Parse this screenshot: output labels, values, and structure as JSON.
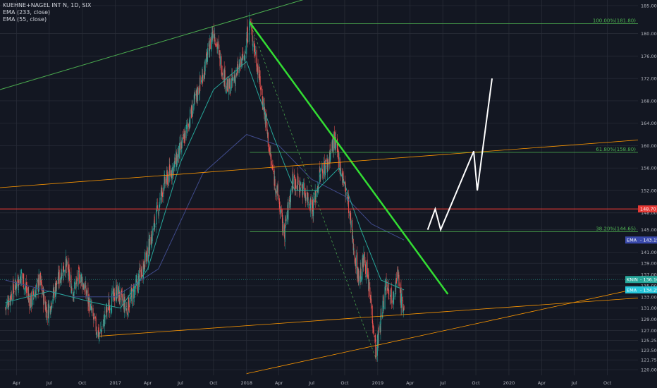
{
  "legend": {
    "symbol": "KUEHNE+NAGEL INT N, 1D, SIX",
    "ema1": "EMA (233, close)",
    "ema2": "EMA (55, close)"
  },
  "chart_data": {
    "type": "candlestick",
    "symbol": "KUEHNE+NAGEL INT N",
    "interval": "1D",
    "exchange": "SIX",
    "ylim": [
      119,
      186
    ],
    "y_ticks": [
      120.0,
      121.75,
      123.5,
      125.25,
      127.0,
      129.0,
      131.0,
      133.0,
      135.0,
      137.0,
      139.0,
      141.0,
      145.0,
      148.0,
      152.0,
      156.0,
      160.0,
      164.0,
      168.0,
      172.0,
      176.0,
      180.0,
      185.0
    ],
    "x_ticks": [
      "Apr",
      "Jul",
      "Oct",
      "2017",
      "Apr",
      "Jul",
      "Oct",
      "2018",
      "Apr",
      "Jul",
      "Oct",
      "2019",
      "Apr",
      "Jul",
      "Oct",
      "2020",
      "Apr",
      "Jul",
      "Oct"
    ],
    "price_path": [
      [
        "2016-03-01",
        131
      ],
      [
        "2016-03-20",
        134
      ],
      [
        "2016-04-15",
        137
      ],
      [
        "2016-05-10",
        132
      ],
      [
        "2016-06-05",
        136
      ],
      [
        "2016-06-25",
        130
      ],
      [
        "2016-07-20",
        135
      ],
      [
        "2016-08-15",
        139
      ],
      [
        "2016-09-05",
        134
      ],
      [
        "2016-09-25",
        137
      ],
      [
        "2016-10-15",
        133
      ],
      [
        "2016-11-05",
        128
      ],
      [
        "2016-11-18",
        126
      ],
      [
        "2016-12-10",
        131
      ],
      [
        "2017-01-05",
        134
      ],
      [
        "2017-02-01",
        131
      ],
      [
        "2017-03-01",
        135
      ],
      [
        "2017-04-01",
        141
      ],
      [
        "2017-04-20",
        146
      ],
      [
        "2017-05-15",
        153
      ],
      [
        "2017-06-10",
        156
      ],
      [
        "2017-07-05",
        160
      ],
      [
        "2017-08-01",
        166
      ],
      [
        "2017-08-25",
        171
      ],
      [
        "2017-09-15",
        176
      ],
      [
        "2017-10-01",
        181
      ],
      [
        "2017-10-20",
        175
      ],
      [
        "2017-11-10",
        170
      ],
      [
        "2017-12-05",
        173
      ],
      [
        "2017-12-25",
        176
      ],
      [
        "2018-01-10",
        182
      ],
      [
        "2018-02-01",
        174
      ],
      [
        "2018-02-20",
        166
      ],
      [
        "2018-03-10",
        157
      ],
      [
        "2018-04-01",
        150
      ],
      [
        "2018-04-15",
        144
      ],
      [
        "2018-05-10",
        154
      ],
      [
        "2018-06-10",
        152
      ],
      [
        "2018-07-05",
        149
      ],
      [
        "2018-07-25",
        155
      ],
      [
        "2018-08-15",
        157
      ],
      [
        "2018-09-01",
        161
      ],
      [
        "2018-09-20",
        156
      ],
      [
        "2018-10-10",
        150
      ],
      [
        "2018-10-25",
        142
      ],
      [
        "2018-11-10",
        136
      ],
      [
        "2018-11-25",
        140
      ],
      [
        "2018-12-15",
        131
      ],
      [
        "2018-12-27",
        123
      ],
      [
        "2019-01-10",
        129
      ],
      [
        "2019-01-25",
        136
      ],
      [
        "2019-02-10",
        133
      ],
      [
        "2019-02-25",
        137
      ],
      [
        "2019-03-08",
        132
      ],
      [
        "2019-03-15",
        131
      ]
    ],
    "ema_233": [
      [
        "2016-03-01",
        136
      ],
      [
        "2016-09-01",
        133
      ],
      [
        "2017-01-01",
        133
      ],
      [
        "2017-05-01",
        138
      ],
      [
        "2017-09-01",
        155
      ],
      [
        "2018-01-01",
        162
      ],
      [
        "2018-04-01",
        160
      ],
      [
        "2018-07-01",
        154
      ],
      [
        "2018-10-01",
        151
      ],
      [
        "2018-12-15",
        146
      ],
      [
        "2019-03-15",
        143.15
      ]
    ],
    "ema_55": [
      [
        "2016-03-01",
        132
      ],
      [
        "2016-07-01",
        134
      ],
      [
        "2016-11-01",
        132
      ],
      [
        "2017-01-15",
        131
      ],
      [
        "2017-04-01",
        138
      ],
      [
        "2017-07-01",
        157
      ],
      [
        "2017-10-01",
        170
      ],
      [
        "2018-01-01",
        175
      ],
      [
        "2018-03-15",
        162
      ],
      [
        "2018-05-15",
        152
      ],
      [
        "2018-07-15",
        152
      ],
      [
        "2018-09-15",
        156
      ],
      [
        "2018-11-15",
        145
      ],
      [
        "2019-01-10",
        136
      ],
      [
        "2019-03-15",
        134.25
      ]
    ],
    "current_price": 136.1,
    "levels": {
      "red_horizontal": 148.7,
      "fib_100": 181.8,
      "fib_61_8": 158.8,
      "fib_38_2": 144.65
    },
    "price_tags": [
      {
        "label": "148.70",
        "value": 148.7,
        "color": "#e53935"
      },
      {
        "label": "EMA",
        "text": "143.15",
        "value": 143.15,
        "color": "#3949ab"
      },
      {
        "label": "KNIN",
        "text": "136.10",
        "value": 136.1,
        "color": "#26a69a"
      },
      {
        "label": "EMA",
        "text": "134.25",
        "value": 134.25,
        "color": "#26c6da"
      }
    ],
    "fib_labels": [
      {
        "text": "100.00%(181.80)",
        "value": 181.8
      },
      {
        "text": "61.80%(158.80)",
        "value": 158.8
      },
      {
        "text": "38.20%(144.65)",
        "value": 144.65
      }
    ],
    "projection_path": [
      [
        "2019-05-20",
        145
      ],
      [
        "2019-06-10",
        148.7
      ],
      [
        "2019-06-25",
        145
      ],
      [
        "2019-09-25",
        159
      ],
      [
        "2019-10-05",
        152
      ],
      [
        "2019-11-15",
        172
      ]
    ],
    "colors": {
      "background": "#131722",
      "grid": "#2a2e39",
      "up": "#26a69a",
      "down": "#ef5350",
      "ema_233": "#3f4a8a",
      "ema_55": "#26a69a",
      "downtrend": "#4caf50",
      "uptrend_channel": "#4caf50",
      "support": "#ff9800",
      "fib": "#4caf50",
      "projection": "#ffffff"
    }
  }
}
